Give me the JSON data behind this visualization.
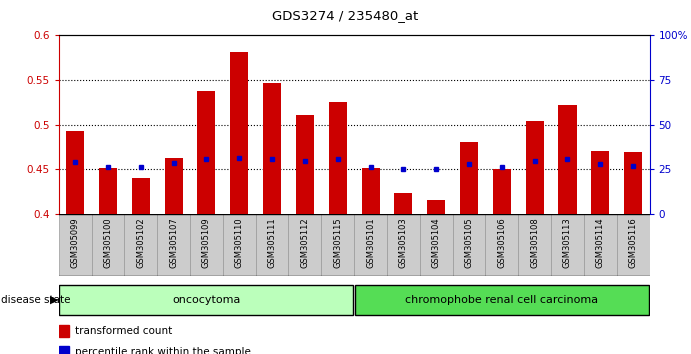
{
  "title": "GDS3274 / 235480_at",
  "samples": [
    "GSM305099",
    "GSM305100",
    "GSM305102",
    "GSM305107",
    "GSM305109",
    "GSM305110",
    "GSM305111",
    "GSM305112",
    "GSM305115",
    "GSM305101",
    "GSM305103",
    "GSM305104",
    "GSM305105",
    "GSM305106",
    "GSM305108",
    "GSM305113",
    "GSM305114",
    "GSM305116"
  ],
  "transformed_count": [
    0.493,
    0.452,
    0.441,
    0.463,
    0.538,
    0.581,
    0.547,
    0.511,
    0.526,
    0.452,
    0.424,
    0.416,
    0.481,
    0.451,
    0.504,
    0.522,
    0.471,
    0.469
  ],
  "percentile_rank": [
    0.458,
    0.453,
    0.453,
    0.457,
    0.462,
    0.463,
    0.462,
    0.46,
    0.462,
    0.453,
    0.45,
    0.45,
    0.456,
    0.453,
    0.46,
    0.462,
    0.456,
    0.454
  ],
  "bar_color": "#cc0000",
  "dot_color": "#0000cc",
  "ymin": 0.4,
  "ymax": 0.6,
  "yticks": [
    0.4,
    0.45,
    0.5,
    0.55,
    0.6
  ],
  "ytick_labels": [
    "0.4",
    "0.45",
    "0.5",
    "0.55",
    "0.6"
  ],
  "right_yticks": [
    0,
    25,
    50,
    75,
    100
  ],
  "right_ytick_labels": [
    "0",
    "25",
    "50",
    "75",
    "100%"
  ],
  "group1_label": "oncocytoma",
  "group2_label": "chromophobe renal cell carcinoma",
  "group1_count": 9,
  "group2_count": 9,
  "group1_color": "#bbffbb",
  "group2_color": "#55dd55",
  "xtick_bg": "#cccccc",
  "disease_state_label": "disease state",
  "legend1": "transformed count",
  "legend2": "percentile rank within the sample"
}
